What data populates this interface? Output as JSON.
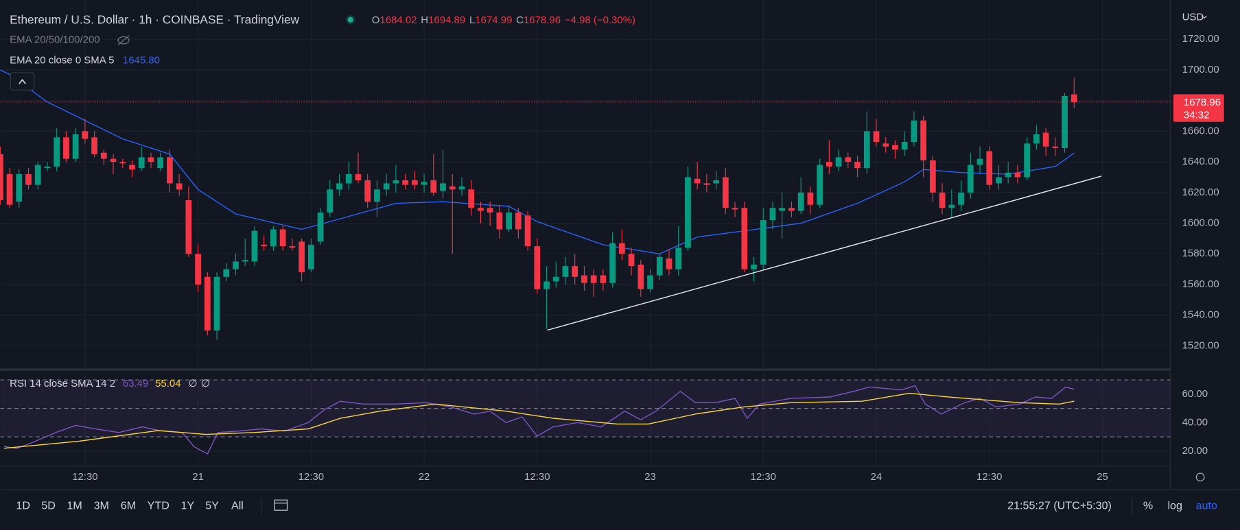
{
  "header": {
    "title": "Ethereum / U.S. Dollar · 1h · COINBASE · TradingView",
    "o": "O",
    "h": "H",
    "l": "L",
    "c": "C",
    "change": "−4.98 (−0.30%)"
  },
  "indicators": {
    "ema_group": "EMA 20/50/100/200",
    "ema": "EMA 20 close 0 SMA 5",
    "ema_value": "1645.80",
    "rsi": "RSI 14 close SMA 14 2",
    "rsi_extra": [
      "∅",
      "∅"
    ]
  },
  "chart_data": [
    {
      "type": "candlestick",
      "currency": "USD",
      "xlim": [
        0,
        124.2
      ],
      "xticks": [
        {
          "value": 9,
          "label": "12:30"
        },
        {
          "value": 21,
          "label": "21"
        },
        {
          "value": 33,
          "label": "12:30"
        },
        {
          "value": 45,
          "label": "22"
        },
        {
          "value": 57,
          "label": "12:30"
        },
        {
          "value": 69,
          "label": "23"
        },
        {
          "value": 81,
          "label": "12:30"
        },
        {
          "value": 93,
          "label": "24"
        },
        {
          "value": 105,
          "label": "12:30"
        },
        {
          "value": 117,
          "label": "25"
        }
      ],
      "ylim": [
        1505,
        1743
      ],
      "yticks": [
        {
          "value": 1520,
          "label": "1520.00"
        },
        {
          "value": 1540,
          "label": "1540.00"
        },
        {
          "value": 1560,
          "label": "1560.00"
        },
        {
          "value": 1580,
          "label": "1580.00"
        },
        {
          "value": 1600,
          "label": "1600.00"
        },
        {
          "value": 1620,
          "label": "1620.00"
        },
        {
          "value": 1640,
          "label": "1640.00"
        },
        {
          "value": 1660,
          "label": "1660.00"
        },
        {
          "value": 1680,
          "label": "1680.00"
        },
        {
          "value": 1700,
          "label": "1700.00"
        },
        {
          "value": 1720,
          "label": "1720.00"
        }
      ],
      "up_color": "#089981",
      "down_color": "#f23645",
      "open": [
        1645,
        1632,
        1614,
        1632,
        1625,
        1636,
        1637,
        1656,
        1642,
        1660,
        1656,
        1646,
        1642,
        1640,
        1638,
        1636,
        1643,
        1636,
        1643,
        1626,
        1615,
        1580,
        1565,
        1530,
        1565,
        1570,
        1575,
        1575,
        1586,
        1585,
        1596,
        1585,
        1588,
        1570,
        1588,
        1607,
        1622,
        1626,
        1632,
        1628,
        1614,
        1622,
        1626,
        1628,
        1628,
        1625,
        1628,
        1621,
        1624,
        1622,
        1622,
        1610,
        1610,
        1607,
        1596,
        1607,
        1605,
        1585,
        1557,
        1562,
        1565,
        1572,
        1566,
        1566,
        1566,
        1561,
        1587,
        1580,
        1573,
        1557,
        1566,
        1577,
        1570,
        1584,
        1629,
        1626,
        1626,
        1630,
        1610,
        1610,
        1570,
        1573,
        1602,
        1608,
        1610,
        1608,
        1620,
        1612,
        1640,
        1637,
        1643,
        1640,
        1636,
        1660,
        1652,
        1651,
        1648,
        1653,
        1667,
        1641,
        1620,
        1610,
        1612,
        1620,
        1638,
        1647,
        1626,
        1630,
        1633,
        1630,
        1652,
        1659,
        1650,
        1649,
        1684.02
      ],
      "high": [
        1650,
        1636,
        1635,
        1636,
        1640,
        1640,
        1662,
        1660,
        1662,
        1668,
        1660,
        1648,
        1645,
        1642,
        1641,
        1650,
        1646,
        1646,
        1648,
        1632,
        1624,
        1586,
        1568,
        1568,
        1574,
        1580,
        1590,
        1598,
        1592,
        1598,
        1598,
        1590,
        1590,
        1590,
        1610,
        1628,
        1632,
        1640,
        1646,
        1632,
        1628,
        1632,
        1638,
        1632,
        1634,
        1632,
        1645,
        1648,
        1632,
        1630,
        1628,
        1614,
        1614,
        1612,
        1612,
        1610,
        1608,
        1590,
        1572,
        1575,
        1578,
        1580,
        1572,
        1570,
        1570,
        1594,
        1596,
        1584,
        1576,
        1570,
        1580,
        1583,
        1598,
        1637,
        1640,
        1632,
        1634,
        1636,
        1614,
        1614,
        1578,
        1610,
        1614,
        1620,
        1614,
        1630,
        1624,
        1642,
        1654,
        1648,
        1646,
        1644,
        1673,
        1668,
        1656,
        1654,
        1660,
        1673,
        1670,
        1644,
        1626,
        1622,
        1628,
        1646,
        1650,
        1650,
        1638,
        1640,
        1638,
        1656,
        1664,
        1662,
        1656,
        1685,
        1694.89
      ],
      "low": [
        1612,
        1610,
        1610,
        1622,
        1622,
        1634,
        1634,
        1640,
        1640,
        1652,
        1643,
        1638,
        1632,
        1636,
        1630,
        1634,
        1636,
        1634,
        1620,
        1618,
        1578,
        1555,
        1527,
        1524,
        1562,
        1566,
        1572,
        1572,
        1582,
        1582,
        1582,
        1582,
        1562,
        1568,
        1586,
        1604,
        1618,
        1622,
        1626,
        1610,
        1604,
        1618,
        1620,
        1622,
        1622,
        1620,
        1618,
        1616,
        1580,
        1618,
        1605,
        1600,
        1598,
        1590,
        1594,
        1590,
        1582,
        1554,
        1531,
        1558,
        1560,
        1560,
        1556,
        1552,
        1556,
        1558,
        1576,
        1566,
        1552,
        1555,
        1563,
        1566,
        1566,
        1582,
        1622,
        1620,
        1622,
        1606,
        1604,
        1568,
        1562,
        1570,
        1596,
        1590,
        1604,
        1606,
        1606,
        1610,
        1632,
        1634,
        1636,
        1630,
        1632,
        1650,
        1646,
        1642,
        1644,
        1650,
        1630,
        1614,
        1606,
        1604,
        1608,
        1616,
        1632,
        1622,
        1622,
        1626,
        1626,
        1628,
        1648,
        1644,
        1644,
        1646,
        1674.99
      ],
      "close": [
        1615,
        1612,
        1632,
        1625,
        1638,
        1637,
        1656,
        1642,
        1658,
        1655,
        1645,
        1642,
        1640,
        1639,
        1635,
        1643,
        1640,
        1643,
        1626,
        1622,
        1580,
        1560,
        1530,
        1565,
        1570,
        1575,
        1576,
        1595,
        1585,
        1596,
        1585,
        1584,
        1568,
        1586,
        1607,
        1622,
        1626,
        1632,
        1628,
        1614,
        1622,
        1626,
        1628,
        1625,
        1625,
        1627,
        1620,
        1626,
        1622,
        1624,
        1610,
        1608,
        1607,
        1596,
        1607,
        1596,
        1585,
        1557,
        1562,
        1565,
        1572,
        1565,
        1561,
        1561,
        1561,
        1587,
        1580,
        1572,
        1557,
        1566,
        1578,
        1570,
        1584,
        1630,
        1626,
        1625,
        1628,
        1610,
        1609,
        1570,
        1573,
        1602,
        1610,
        1610,
        1608,
        1620,
        1612,
        1638,
        1637,
        1643,
        1640,
        1636,
        1660,
        1653,
        1650,
        1648,
        1653,
        1667,
        1641,
        1620,
        1610,
        1612,
        1620,
        1638,
        1642,
        1625,
        1630,
        1633,
        1630,
        1652,
        1658,
        1650,
        1649,
        1683,
        1678.96
      ],
      "countdown": "34:32",
      "series": [
        {
          "name": "EMA 20",
          "color": "#2962ff",
          "x": [
            0,
            1,
            5,
            13,
            18,
            21,
            25,
            32,
            35,
            42,
            47,
            54,
            57,
            64,
            70,
            74,
            79,
            85,
            91,
            96,
            98,
            102,
            107,
            112,
            114
          ],
          "values": [
            1700,
            1697,
            1679,
            1655,
            1645,
            1622,
            1606,
            1596,
            1601,
            1613,
            1614,
            1611,
            1601,
            1586,
            1580,
            1591,
            1595,
            1600,
            1613,
            1627,
            1635,
            1633,
            1632,
            1637,
            1645.8
          ]
        }
      ]
    },
    {
      "type": "line",
      "ylim": [
        10.6,
        76.1
      ],
      "yticks": [
        {
          "value": 20,
          "label": "20.00"
        },
        {
          "value": 40,
          "label": "40.00"
        },
        {
          "value": 60,
          "label": "60.00"
        }
      ],
      "bands": [
        30,
        50,
        70
      ],
      "band_color": "#7e57c2",
      "series": [
        {
          "name": "RSI",
          "color": "#7e57c2",
          "x": [
            0.4,
            1.7,
            3.4,
            5.9,
            8.0,
            10.1,
            12.6,
            15.1,
            17.2,
            19.3,
            20.6,
            22.0,
            23.1,
            25.2,
            27.7,
            30.2,
            32.7,
            34.4,
            36.1,
            38.6,
            41.9,
            45.3,
            47.8,
            50.3,
            52.0,
            53.7,
            55.4,
            57.0,
            58.7,
            61.3,
            63.8,
            66.3,
            68.0,
            69.6,
            72.2,
            73.8,
            75.9,
            78.0,
            79.3,
            80.6,
            83.9,
            88.1,
            90.6,
            92.3,
            95.7,
            97.1,
            98.2,
            99.9,
            102.4,
            104.0,
            105.7,
            108.2,
            109.9,
            111.6,
            113.1,
            114
          ],
          "values": [
            23.3,
            21.7,
            26,
            33,
            38,
            35.6,
            33,
            37,
            34,
            33,
            23,
            18,
            33,
            34,
            35.6,
            34,
            40,
            49,
            55,
            53,
            53,
            54,
            51,
            46,
            48,
            40,
            44,
            30.5,
            37,
            40,
            37,
            48,
            42,
            48,
            62,
            54,
            54,
            57,
            43,
            53,
            57,
            58,
            62,
            65,
            63,
            66,
            53,
            46,
            54,
            57,
            51,
            53,
            58,
            57,
            65,
            63.49
          ]
        },
        {
          "name": "SMA",
          "color": "#fdd835",
          "x": [
            0.4,
            8.4,
            16.8,
            21.8,
            26.9,
            32.7,
            36.1,
            40.3,
            46.2,
            53.7,
            58.7,
            65.5,
            68.8,
            73.8,
            78.9,
            83.9,
            91.5,
            96.5,
            100.7,
            108.2,
            112.4,
            114
          ],
          "values": [
            22,
            27,
            34.4,
            31.7,
            33,
            35.6,
            43,
            48,
            53,
            48,
            43,
            39,
            39,
            46,
            51,
            54,
            55,
            60.6,
            58,
            54,
            53,
            55.04
          ]
        }
      ]
    }
  ],
  "toolbar": {
    "ranges": [
      "1D",
      "5D",
      "1M",
      "3M",
      "6M",
      "YTD",
      "1Y",
      "5Y",
      "All"
    ],
    "clock": "21:55:27 (UTC+5:30)",
    "options": [
      "%",
      "log",
      "auto"
    ]
  }
}
